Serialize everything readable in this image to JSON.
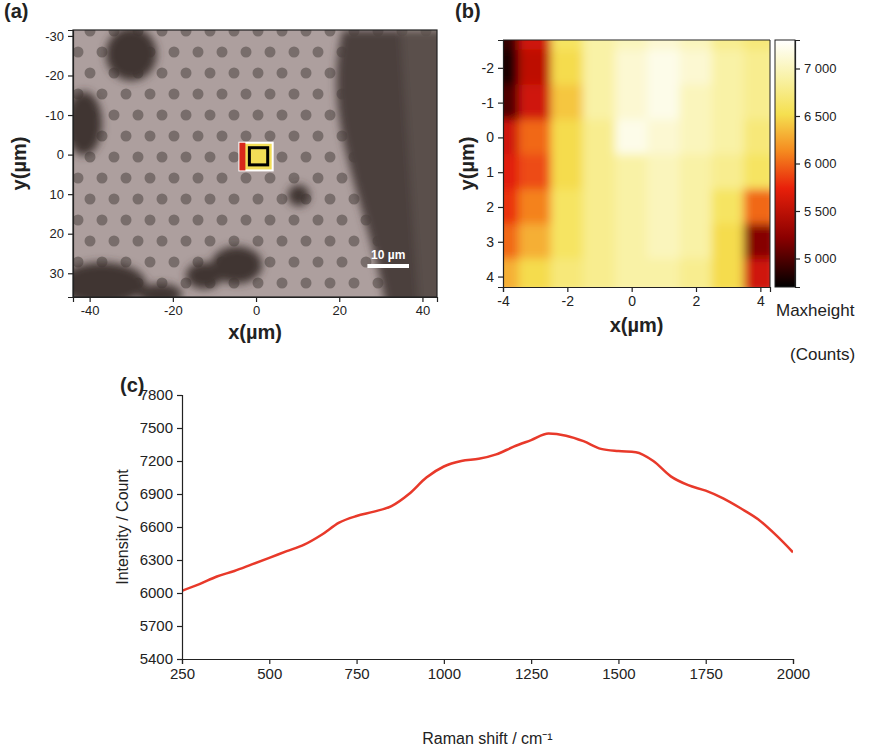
{
  "chart_data": [
    {
      "type": "image",
      "label": "(a)",
      "xlabel": "x(µm)",
      "ylabel": "y(µm)",
      "xlim": [
        -44,
        43.5
      ],
      "ylim": [
        -31.5,
        36
      ],
      "xticks": [
        -40,
        -20,
        0,
        20,
        40
      ],
      "yticks": [
        -30,
        -20,
        -10,
        0,
        10,
        20,
        30
      ],
      "scan_region": {
        "x": [
          -4,
          4
        ],
        "y": [
          -3,
          4
        ]
      },
      "scale_bar": {
        "label": "10 µm",
        "length": 10
      }
    },
    {
      "type": "heatmap",
      "label": "(b)",
      "xlabel": "x(µm)",
      "ylabel": "y(µm)",
      "xlim": [
        -4,
        4.3
      ],
      "ylim": [
        -2.8,
        4.3
      ],
      "xticks": [
        -4,
        -2,
        0,
        2,
        4
      ],
      "yticks": [
        -2,
        -1,
        0,
        1,
        2,
        3,
        4
      ],
      "x": [
        -4,
        -3,
        -2,
        -1,
        0,
        1,
        2,
        3,
        4
      ],
      "y": [
        -3,
        -2,
        -1,
        0,
        1,
        2,
        3,
        4
      ],
      "z": [
        [
          4900,
          5600,
          6600,
          6900,
          7000,
          7100,
          7000,
          6800,
          6700
        ],
        [
          4800,
          5500,
          6500,
          6900,
          7100,
          7200,
          7100,
          6900,
          6800
        ],
        [
          5000,
          5600,
          6400,
          6900,
          7100,
          7200,
          7000,
          6900,
          6800
        ],
        [
          5600,
          6000,
          6500,
          6800,
          7200,
          7100,
          7000,
          6900,
          6700
        ],
        [
          5700,
          5900,
          6500,
          6800,
          6900,
          7000,
          6900,
          6800,
          6600
        ],
        [
          5800,
          6100,
          6600,
          6800,
          6900,
          7000,
          6900,
          6600,
          6000
        ],
        [
          6000,
          6300,
          6600,
          6800,
          6900,
          7000,
          6900,
          6500,
          5200
        ],
        [
          6300,
          6500,
          6700,
          6800,
          6900,
          6900,
          6800,
          6500,
          5600
        ]
      ],
      "colorbar_lim": [
        4700,
        7300
      ],
      "colorbar_ticks": [
        {
          "value": 5000,
          "label": "5 000"
        },
        {
          "value": 5500,
          "label": "5 500"
        },
        {
          "value": 6000,
          "label": "6 000"
        },
        {
          "value": 6500,
          "label": "6 500"
        },
        {
          "value": 7000,
          "label": "7 000"
        }
      ],
      "colorbar_label": [
        "Maxheight",
        "(Counts)"
      ]
    },
    {
      "type": "line",
      "label": "(c)",
      "xlabel": "Raman shift / cm⁻¹",
      "ylabel": "Intensity / Count",
      "color": "#e8392a",
      "xlim": [
        250,
        2000
      ],
      "ylim": [
        5400,
        7800
      ],
      "xticks": [
        250,
        500,
        750,
        1000,
        1250,
        1500,
        1750,
        2000
      ],
      "yticks": [
        5400,
        5700,
        6000,
        6300,
        6600,
        6900,
        7200,
        7500,
        7800
      ],
      "x": [
        250,
        300,
        350,
        400,
        450,
        500,
        550,
        600,
        650,
        700,
        750,
        800,
        850,
        900,
        950,
        1000,
        1050,
        1100,
        1150,
        1200,
        1250,
        1300,
        1350,
        1400,
        1450,
        1500,
        1550,
        1600,
        1650,
        1700,
        1750,
        1800,
        1850,
        1900,
        1950,
        2000
      ],
      "values": [
        6020,
        6080,
        6150,
        6200,
        6260,
        6320,
        6380,
        6440,
        6530,
        6640,
        6700,
        6740,
        6790,
        6900,
        7050,
        7150,
        7200,
        7220,
        7260,
        7330,
        7390,
        7450,
        7430,
        7380,
        7310,
        7290,
        7280,
        7200,
        7060,
        6980,
        6930,
        6860,
        6770,
        6670,
        6530,
        6370
      ]
    }
  ]
}
